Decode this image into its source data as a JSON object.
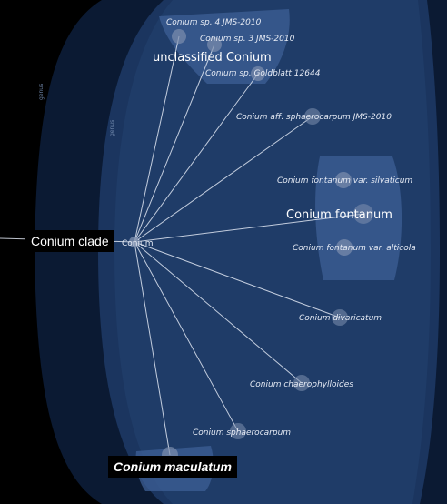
{
  "ranks": {
    "genus": "genus",
    "species": "genus"
  },
  "clade_tag": "Conium clade",
  "maculatum_tag": "Conium maculatum",
  "root": {
    "label": "Conium"
  },
  "groups": {
    "unclassified": {
      "label": "unclassified Conium"
    },
    "fontanum": {
      "label": "Conium fontanum"
    }
  },
  "nodes": [
    {
      "id": "sp4",
      "label": "Conium sp. 4 JMS-2010"
    },
    {
      "id": "sp3",
      "label": "Conium sp. 3 JMS-2010"
    },
    {
      "id": "spGold",
      "label": "Conium sp. Goldblatt 12644"
    },
    {
      "id": "sphaff",
      "label": "Conium aff. sphaerocarpum JMS-2010"
    },
    {
      "id": "silv",
      "label": "Conium fontanum var. silvaticum"
    },
    {
      "id": "alticola",
      "label": "Conium fontanum var. alticola"
    },
    {
      "id": "divar",
      "label": "Conium divaricatum"
    },
    {
      "id": "chaer",
      "label": "Conium chaerophylloides"
    },
    {
      "id": "sphae",
      "label": "Conium sphaerocarpum"
    }
  ],
  "colors": {
    "background": "#000000",
    "outer_disc": "#0b1a33",
    "inner_disc": "#1f3c6b",
    "group_box": "#3d5f95",
    "node": "#7d8fae",
    "edge": "#dfe6f2"
  }
}
